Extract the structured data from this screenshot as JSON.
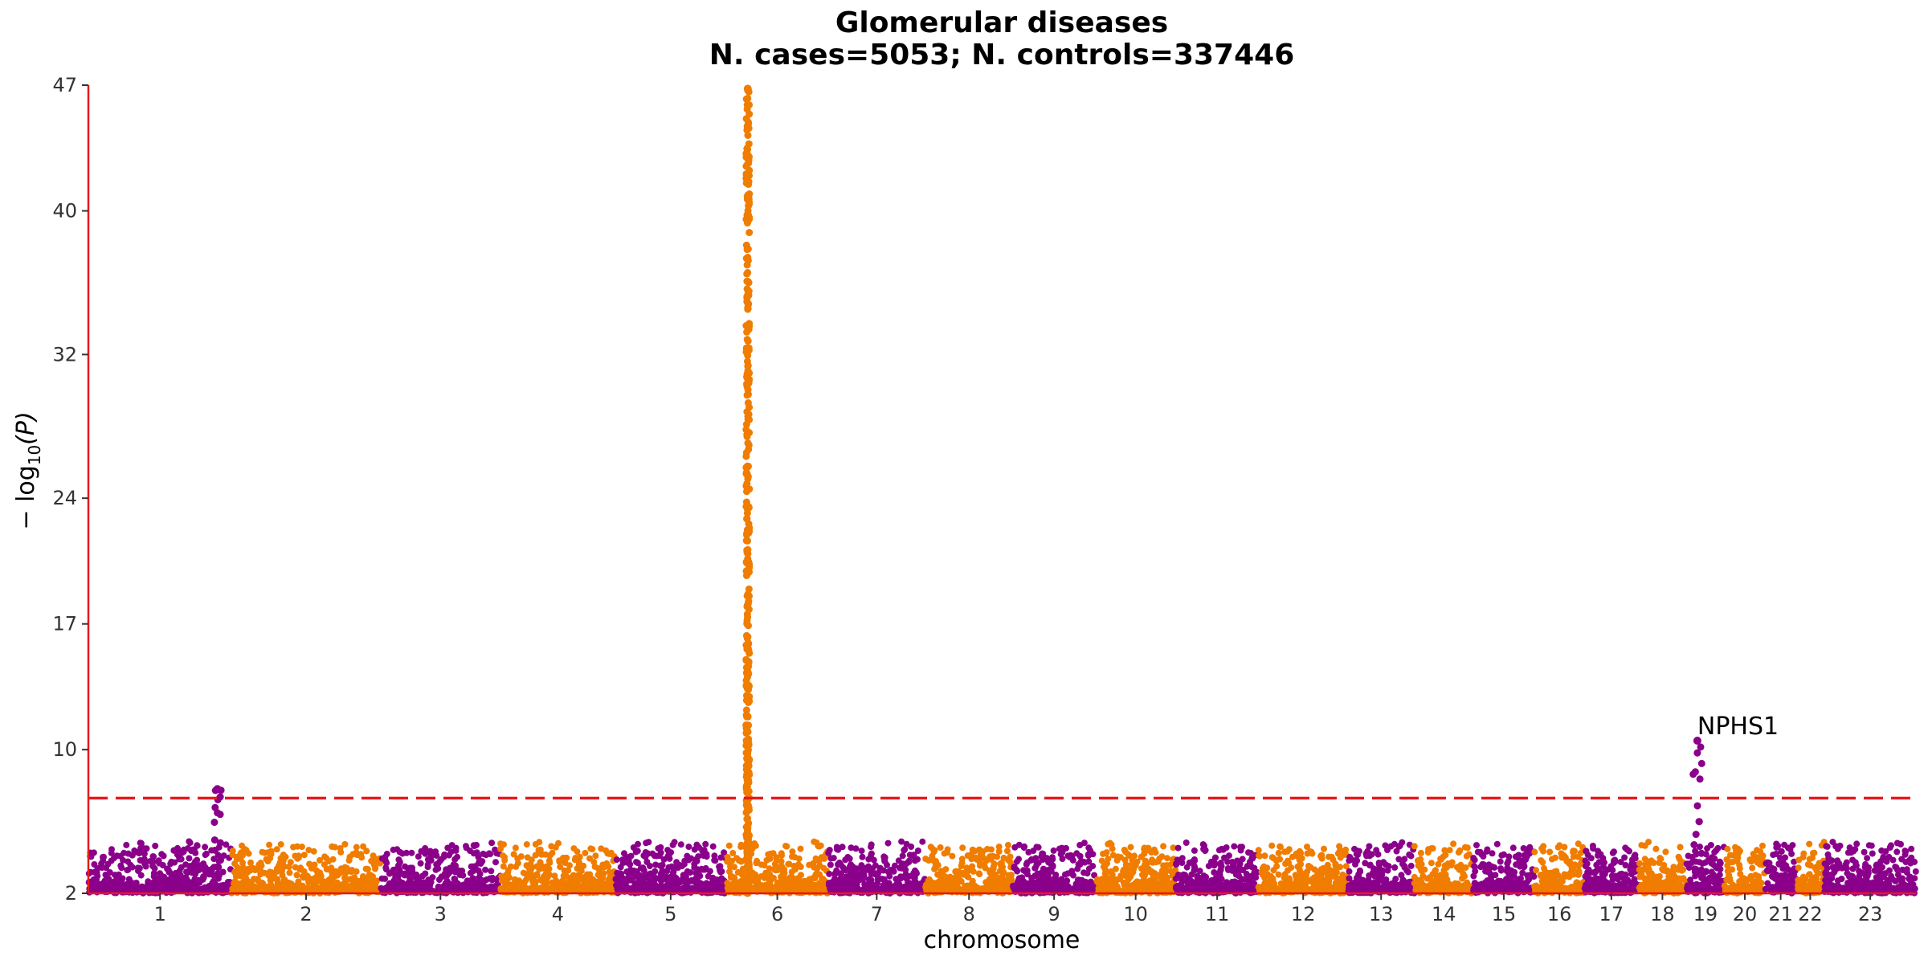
{
  "chart_data": {
    "type": "scatter",
    "subtype": "manhattan",
    "title": "Glomerular diseases",
    "subtitle": "N. cases=5053; N. controls=337446",
    "xlabel": "chromosome",
    "ylabel_parts": {
      "prefix": "− log",
      "sub": "10",
      "suffix": "(P)"
    },
    "yticks": [
      2,
      10,
      17,
      24,
      32,
      40,
      47
    ],
    "ylim": [
      2,
      47
    ],
    "x_axis": "cumulative genomic position by chromosome",
    "chromosomes": [
      {
        "label": "1",
        "start": 0,
        "end": 8.0
      },
      {
        "label": "2",
        "start": 8.0,
        "end": 16.3
      },
      {
        "label": "3",
        "start": 16.3,
        "end": 23.0
      },
      {
        "label": "4",
        "start": 23.0,
        "end": 29.4
      },
      {
        "label": "5",
        "start": 29.4,
        "end": 35.6
      },
      {
        "label": "6",
        "start": 35.6,
        "end": 41.3
      },
      {
        "label": "7",
        "start": 41.3,
        "end": 46.7
      },
      {
        "label": "8",
        "start": 46.7,
        "end": 51.6
      },
      {
        "label": "9",
        "start": 51.6,
        "end": 56.2
      },
      {
        "label": "10",
        "start": 56.2,
        "end": 60.7
      },
      {
        "label": "11",
        "start": 60.7,
        "end": 65.3
      },
      {
        "label": "12",
        "start": 65.3,
        "end": 70.3
      },
      {
        "label": "13",
        "start": 70.3,
        "end": 74.0
      },
      {
        "label": "14",
        "start": 74.0,
        "end": 77.3
      },
      {
        "label": "15",
        "start": 77.3,
        "end": 80.7
      },
      {
        "label": "16",
        "start": 80.7,
        "end": 83.5
      },
      {
        "label": "17",
        "start": 83.5,
        "end": 86.5
      },
      {
        "label": "18",
        "start": 86.5,
        "end": 89.2
      },
      {
        "label": "19",
        "start": 89.2,
        "end": 91.3
      },
      {
        "label": "20",
        "start": 91.3,
        "end": 93.6
      },
      {
        "label": "21",
        "start": 93.6,
        "end": 95.3
      },
      {
        "label": "22",
        "start": 95.3,
        "end": 96.9
      },
      {
        "label": "23",
        "start": 96.9,
        "end": 102.0
      }
    ],
    "colors": [
      "#8b008b",
      "#f07c00"
    ],
    "significance_threshold": 7.3,
    "threshold_color": "#e8191c",
    "peaks": [
      {
        "chrom": "1",
        "pos": 7.2,
        "max": 7.8
      },
      {
        "chrom": "6",
        "pos": 36.8,
        "max": 46.8
      },
      {
        "chrom": "19",
        "pos": 89.8,
        "max": 10.5
      }
    ],
    "annotations": [
      {
        "label": "NPHS1",
        "x": 89.8,
        "y": 10.5,
        "chrom": "19"
      }
    ],
    "grid": false,
    "legend": "none"
  }
}
